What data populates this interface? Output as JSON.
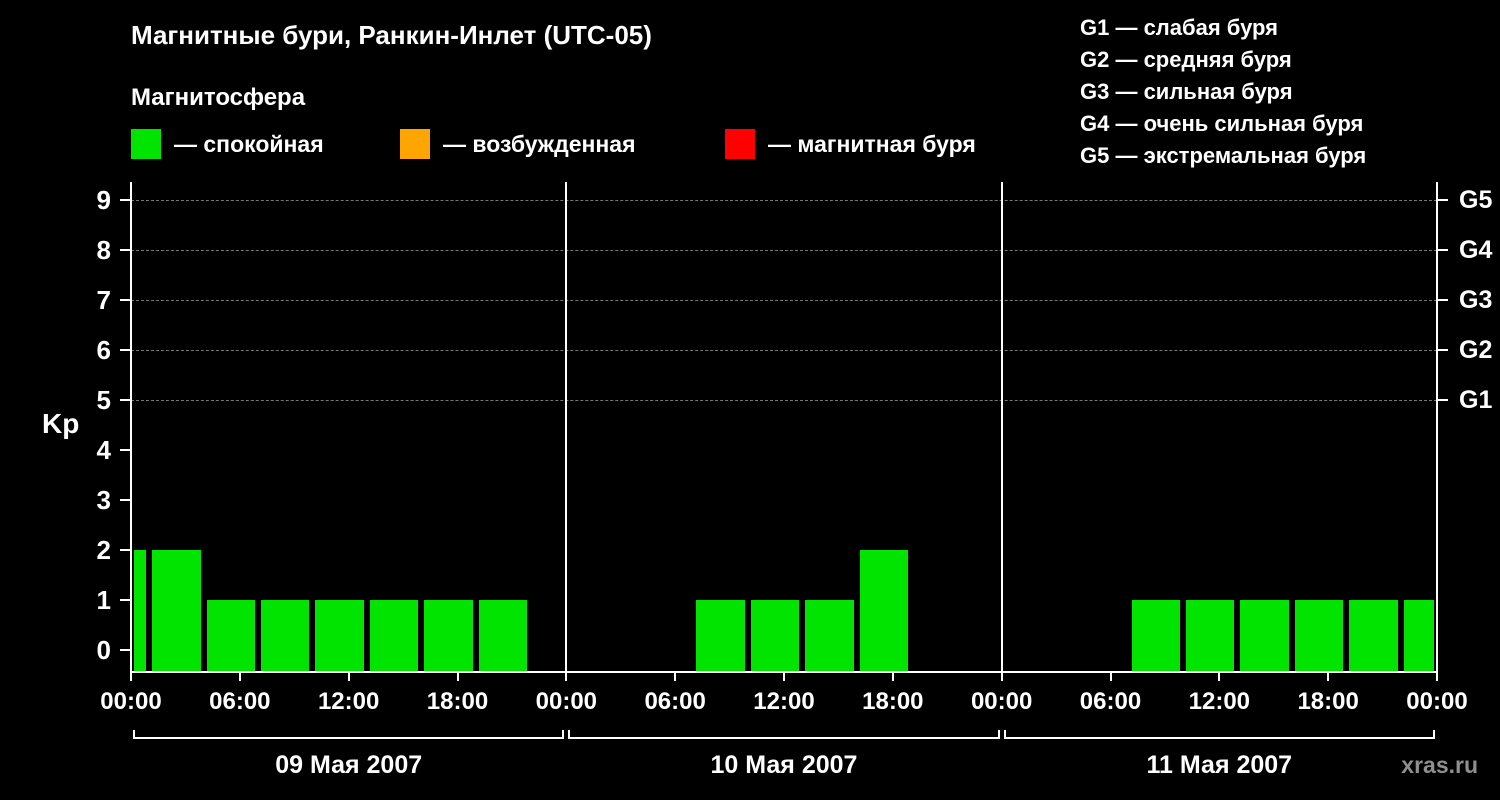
{
  "legend": {
    "items": [
      {
        "label": "— спокойная",
        "color": "#00e400"
      },
      {
        "label": "— возбужденная",
        "color": "#ffa500"
      },
      {
        "label": "— магнитная буря",
        "color": "#ff0000"
      }
    ]
  },
  "storm_scale_legend": [
    "G1 — слабая буря",
    "G2 — средняя буря",
    "G3 — сильная буря",
    "G4 — очень сильная буря",
    "G5 — экстремальная буря"
  ],
  "watermark": "xras.ru",
  "chart_data": {
    "type": "bar",
    "title": "Магнитные бури, Ранкин-Инлет (UTC-05)",
    "subtitle": "Магнитосфера",
    "ylabel": "Kp",
    "ylim": [
      0,
      9
    ],
    "yticks": [
      0,
      1,
      2,
      3,
      4,
      5,
      6,
      7,
      8,
      9
    ],
    "gridline_kp": [
      5,
      6,
      7,
      8,
      9
    ],
    "right_axis": [
      {
        "label": "G1",
        "kp": 5
      },
      {
        "label": "G2",
        "kp": 6
      },
      {
        "label": "G3",
        "kp": 7
      },
      {
        "label": "G4",
        "kp": 8
      },
      {
        "label": "G5",
        "kp": 9
      }
    ],
    "time_tick_labels": [
      "00:00",
      "06:00",
      "12:00",
      "18:00"
    ],
    "final_tick_label": "00:00",
    "hours_per_day": 24,
    "grid": true,
    "days": [
      {
        "date": "09 Мая 2007",
        "bars": [
          {
            "start": 0,
            "end": 1,
            "kp": 2
          },
          {
            "start": 1,
            "end": 4,
            "kp": 2
          },
          {
            "start": 4,
            "end": 7,
            "kp": 1
          },
          {
            "start": 7,
            "end": 10,
            "kp": 1
          },
          {
            "start": 10,
            "end": 13,
            "kp": 1
          },
          {
            "start": 13,
            "end": 16,
            "kp": 1
          },
          {
            "start": 16,
            "end": 19,
            "kp": 1
          },
          {
            "start": 19,
            "end": 22,
            "kp": 1
          }
        ]
      },
      {
        "date": "10 Мая 2007",
        "bars": [
          {
            "start": 7,
            "end": 10,
            "kp": 1
          },
          {
            "start": 10,
            "end": 13,
            "kp": 1
          },
          {
            "start": 13,
            "end": 16,
            "kp": 1
          },
          {
            "start": 16,
            "end": 19,
            "kp": 2
          }
        ]
      },
      {
        "date": "11 Мая 2007",
        "bars": [
          {
            "start": 7,
            "end": 10,
            "kp": 1
          },
          {
            "start": 10,
            "end": 13,
            "kp": 1
          },
          {
            "start": 13,
            "end": 16,
            "kp": 1
          },
          {
            "start": 16,
            "end": 19,
            "kp": 1
          },
          {
            "start": 19,
            "end": 22,
            "kp": 1
          },
          {
            "start": 22,
            "end": 24,
            "kp": 1
          }
        ]
      }
    ]
  }
}
